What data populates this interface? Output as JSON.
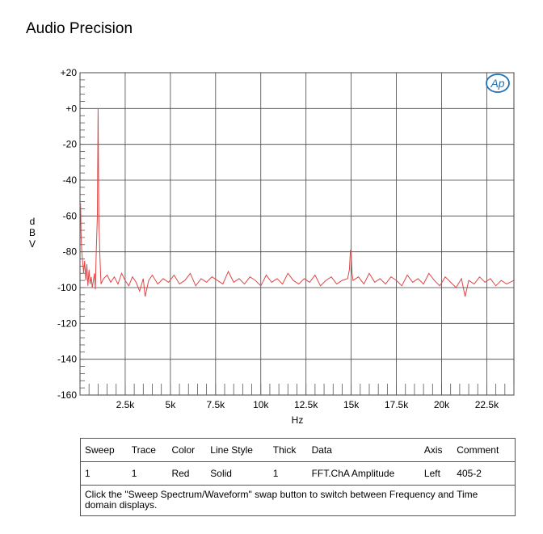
{
  "header": {
    "title": "Audio Precision"
  },
  "chart_data": {
    "type": "line",
    "title": "",
    "xlabel": "Hz",
    "ylabel": "dBV",
    "xlim": [
      0,
      24000
    ],
    "ylim": [
      -160,
      20
    ],
    "x_ticks": [
      2500,
      5000,
      7500,
      10000,
      12500,
      15000,
      17500,
      20000,
      22500
    ],
    "x_tick_labels": [
      "2.5k",
      "5k",
      "7.5k",
      "10k",
      "12.5k",
      "15k",
      "17.5k",
      "20k",
      "22.5k"
    ],
    "y_ticks": [
      20,
      0,
      -20,
      -40,
      -60,
      -80,
      -100,
      -120,
      -140,
      -160
    ],
    "y_tick_labels": [
      "+20",
      "+0",
      "-20",
      "-40",
      "-60",
      "-80",
      "-100",
      "-120",
      "-140",
      "-160"
    ],
    "grid": true,
    "logo": "Ap",
    "series": [
      {
        "color": "#e04545",
        "points": [
          [
            0,
            -55
          ],
          [
            30,
            -53
          ],
          [
            60,
            -70
          ],
          [
            100,
            -80
          ],
          [
            150,
            -86
          ],
          [
            200,
            -92
          ],
          [
            260,
            -85
          ],
          [
            320,
            -96
          ],
          [
            380,
            -87
          ],
          [
            440,
            -99
          ],
          [
            500,
            -90
          ],
          [
            560,
            -98
          ],
          [
            620,
            -94
          ],
          [
            680,
            -100
          ],
          [
            740,
            -96
          ],
          [
            800,
            -92
          ],
          [
            850,
            -101
          ],
          [
            900,
            -80
          ],
          [
            960,
            -60
          ],
          [
            1000,
            0
          ],
          [
            1040,
            -60
          ],
          [
            1100,
            -82
          ],
          [
            1160,
            -98
          ],
          [
            1300,
            -95
          ],
          [
            1500,
            -93
          ],
          [
            1700,
            -97
          ],
          [
            1900,
            -94
          ],
          [
            2100,
            -98
          ],
          [
            2300,
            -92
          ],
          [
            2500,
            -96
          ],
          [
            2700,
            -99
          ],
          [
            2900,
            -94
          ],
          [
            3100,
            -97
          ],
          [
            3300,
            -102
          ],
          [
            3500,
            -95
          ],
          [
            3600,
            -105
          ],
          [
            3800,
            -96
          ],
          [
            4000,
            -93
          ],
          [
            4300,
            -98
          ],
          [
            4600,
            -95
          ],
          [
            4900,
            -97
          ],
          [
            5200,
            -93
          ],
          [
            5500,
            -98
          ],
          [
            5800,
            -96
          ],
          [
            6100,
            -92
          ],
          [
            6400,
            -99
          ],
          [
            6700,
            -95
          ],
          [
            7000,
            -97
          ],
          [
            7300,
            -94
          ],
          [
            7600,
            -96
          ],
          [
            7900,
            -98
          ],
          [
            8200,
            -91
          ],
          [
            8500,
            -97
          ],
          [
            8800,
            -95
          ],
          [
            9100,
            -98
          ],
          [
            9400,
            -94
          ],
          [
            9700,
            -96
          ],
          [
            10000,
            -99
          ],
          [
            10300,
            -93
          ],
          [
            10600,
            -97
          ],
          [
            10900,
            -95
          ],
          [
            11200,
            -98
          ],
          [
            11500,
            -92
          ],
          [
            11800,
            -96
          ],
          [
            12100,
            -98
          ],
          [
            12400,
            -95
          ],
          [
            12700,
            -97
          ],
          [
            13000,
            -93
          ],
          [
            13300,
            -99
          ],
          [
            13600,
            -96
          ],
          [
            13900,
            -94
          ],
          [
            14200,
            -98
          ],
          [
            14500,
            -96
          ],
          [
            14800,
            -95
          ],
          [
            14900,
            -90
          ],
          [
            14960,
            -79
          ],
          [
            15000,
            -80
          ],
          [
            15050,
            -92
          ],
          [
            15100,
            -96
          ],
          [
            15400,
            -94
          ],
          [
            15700,
            -98
          ],
          [
            16000,
            -92
          ],
          [
            16300,
            -97
          ],
          [
            16600,
            -95
          ],
          [
            16900,
            -98
          ],
          [
            17200,
            -94
          ],
          [
            17500,
            -96
          ],
          [
            17800,
            -99
          ],
          [
            18100,
            -93
          ],
          [
            18400,
            -97
          ],
          [
            18700,
            -95
          ],
          [
            19000,
            -98
          ],
          [
            19300,
            -92
          ],
          [
            19600,
            -96
          ],
          [
            19900,
            -99
          ],
          [
            20200,
            -94
          ],
          [
            20500,
            -97
          ],
          [
            20800,
            -100
          ],
          [
            21100,
            -95
          ],
          [
            21300,
            -105
          ],
          [
            21500,
            -96
          ],
          [
            21800,
            -98
          ],
          [
            22100,
            -94
          ],
          [
            22400,
            -97
          ],
          [
            22700,
            -95
          ],
          [
            23000,
            -99
          ],
          [
            23300,
            -96
          ],
          [
            23600,
            -98
          ],
          [
            24000,
            -96
          ]
        ]
      }
    ]
  },
  "legend": {
    "headers": [
      "Sweep",
      "Trace",
      "Color",
      "Line Style",
      "Thick",
      "Data",
      "Axis",
      "Comment"
    ],
    "row": [
      "1",
      "1",
      "Red",
      "Solid",
      "1",
      "FFT.ChA Amplitude",
      "Left",
      "405-2"
    ],
    "note": "Click the \"Sweep Spectrum/Waveform\" swap button to switch between Frequency and Time domain displays."
  }
}
